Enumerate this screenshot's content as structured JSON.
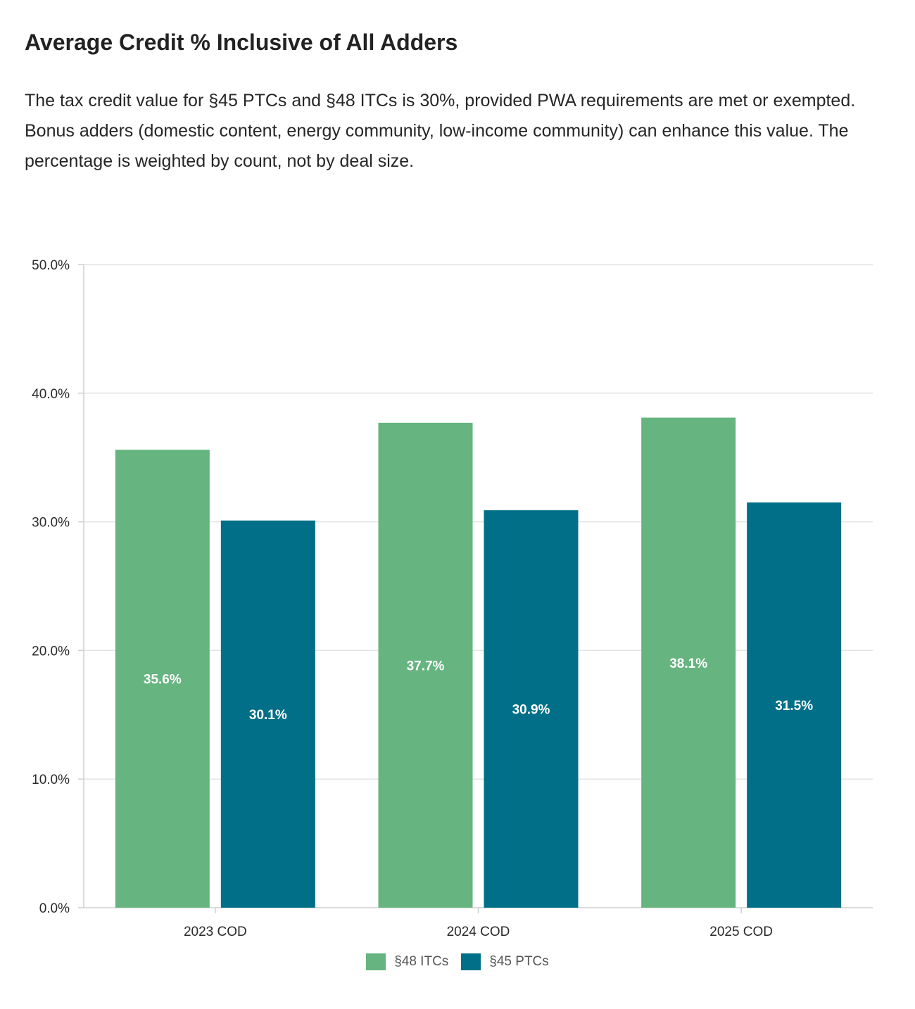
{
  "header": {
    "title": "Average Credit % Inclusive of All Adders",
    "description": "The tax credit value for §45 PTCs and §48 ITCs is 30%, provided PWA requirements are met or exempted. Bonus adders (domestic content, energy community, low-income community) can enhance this value. The percentage is weighted by count, not by deal size."
  },
  "colors": {
    "itc": "#66b47f",
    "ptc": "#006f87",
    "grid": "#e3e3e3",
    "axis": "#cfcfcf",
    "tick_text": "#2a2a2a",
    "bar_label": "#ffffff"
  },
  "chart_data": {
    "type": "bar",
    "categories": [
      "2023 COD",
      "2024 COD",
      "2025 COD"
    ],
    "series": [
      {
        "name": "§48 ITCs",
        "values": [
          35.6,
          37.7,
          38.1
        ],
        "labels": [
          "35.6%",
          "37.7%",
          "38.1%"
        ]
      },
      {
        "name": "§45 PTCs",
        "values": [
          30.1,
          30.9,
          31.5
        ],
        "labels": [
          "30.1%",
          "30.9%",
          "31.5%"
        ]
      }
    ],
    "ylim": [
      0,
      50
    ],
    "yticks": [
      0,
      10,
      20,
      30,
      40,
      50
    ],
    "ytick_labels": [
      "0.0%",
      "10.0%",
      "20.0%",
      "30.0%",
      "40.0%",
      "50.0%"
    ],
    "grid": true,
    "legend_position": "bottom-center"
  }
}
